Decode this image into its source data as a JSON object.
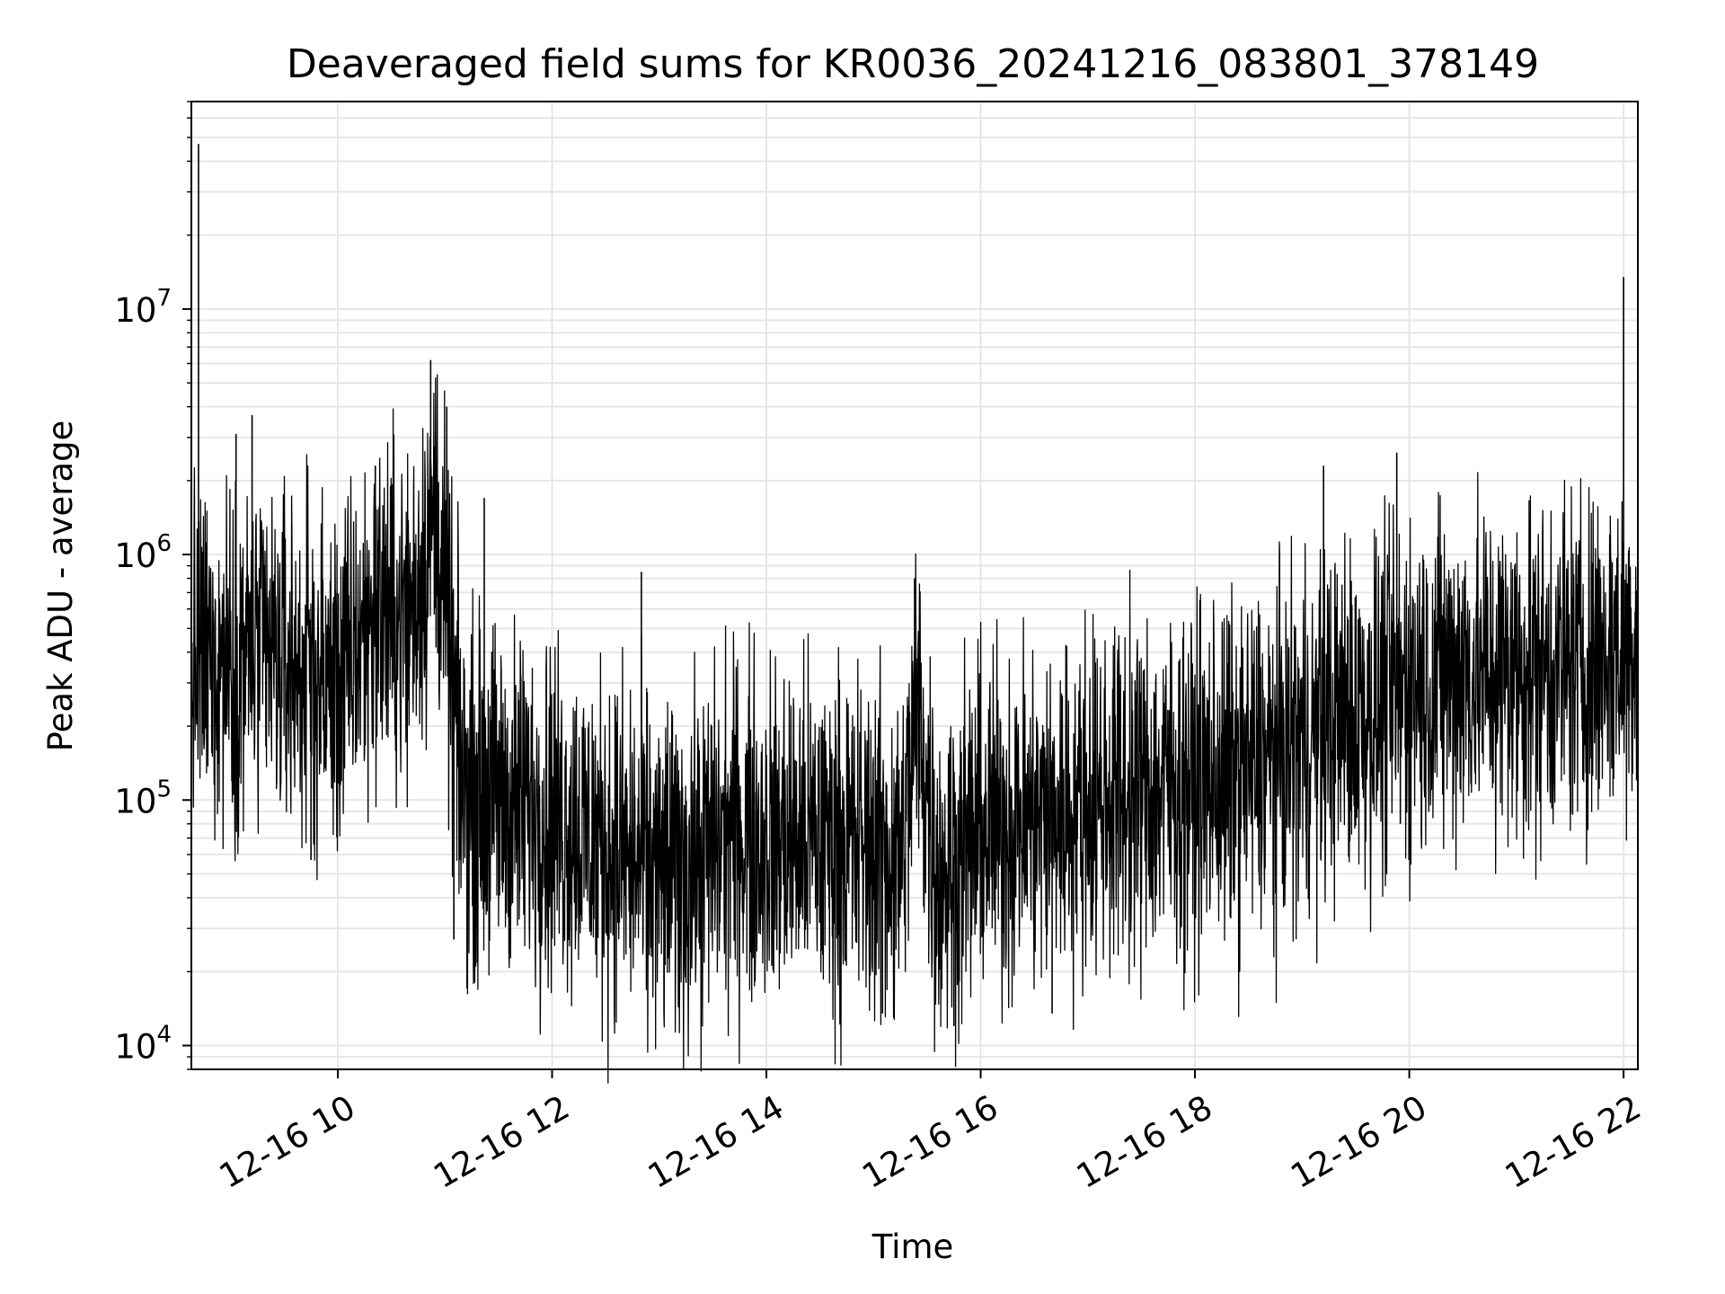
{
  "chart_data": {
    "type": "line",
    "title": "Deaveraged field sums for KR0036_20241216_083801_378149",
    "xlabel": "Time",
    "ylabel": "Peak ADU - average",
    "yscale": "log",
    "ylim": [
      8000,
      70000000
    ],
    "xlim": [
      "2024-12-16 08:38",
      "2024-12-16 22:08"
    ],
    "grid": true,
    "legend": "none",
    "line_color": "#000000",
    "grid_color": "#e6e6e6",
    "x_ticks": [
      {
        "at": "2024-12-16 10:00",
        "label": "12-16 10"
      },
      {
        "at": "2024-12-16 12:00",
        "label": "12-16 12"
      },
      {
        "at": "2024-12-16 14:00",
        "label": "12-16 14"
      },
      {
        "at": "2024-12-16 16:00",
        "label": "12-16 16"
      },
      {
        "at": "2024-12-16 18:00",
        "label": "12-16 18"
      },
      {
        "at": "2024-12-16 20:00",
        "label": "12-16 20"
      },
      {
        "at": "2024-12-16 22:00",
        "label": "12-16 22"
      }
    ],
    "y_ticks": [
      {
        "value": 10000,
        "base": "10",
        "exp": "4"
      },
      {
        "value": 100000,
        "base": "10",
        "exp": "5"
      },
      {
        "value": 1000000,
        "base": "10",
        "exp": "6"
      },
      {
        "value": 10000000,
        "base": "10",
        "exp": "7"
      }
    ],
    "series": [
      {
        "note_on_data": "noisy time series; baseline envelope sampled from the figure, spikes listed separately",
        "x": [
          "2024-12-16 08:38",
          "2024-12-16 09:00",
          "2024-12-16 09:20",
          "2024-12-16 09:40",
          "2024-12-16 10:00",
          "2024-12-16 10:20",
          "2024-12-16 10:40",
          "2024-12-16 10:55",
          "2024-12-16 11:10",
          "2024-12-16 11:30",
          "2024-12-16 12:00",
          "2024-12-16 12:30",
          "2024-12-16 13:00",
          "2024-12-16 13:20",
          "2024-12-16 13:40",
          "2024-12-16 14:00",
          "2024-12-16 14:30",
          "2024-12-16 15:00",
          "2024-12-16 15:15",
          "2024-12-16 15:25",
          "2024-12-16 15:35",
          "2024-12-16 15:50",
          "2024-12-16 16:10",
          "2024-12-16 16:40",
          "2024-12-16 17:00",
          "2024-12-16 17:30",
          "2024-12-16 18:00",
          "2024-12-16 18:30",
          "2024-12-16 19:00",
          "2024-12-16 19:20",
          "2024-12-16 19:40",
          "2024-12-16 20:00",
          "2024-12-16 20:30",
          "2024-12-16 21:00",
          "2024-12-16 21:30",
          "2024-12-16 22:00",
          "2024-12-16 22:08"
        ],
        "y": [
          350000,
          400000,
          380000,
          340000,
          280000,
          600000,
          550000,
          1500000,
          110000,
          100000,
          90000,
          65000,
          50000,
          55000,
          75000,
          70000,
          68000,
          65000,
          55000,
          250000,
          50000,
          65000,
          80000,
          85000,
          100000,
          110000,
          115000,
          130000,
          170000,
          220000,
          230000,
          300000,
          330000,
          340000,
          350000,
          400000,
          500000
        ],
        "spikes": [
          {
            "x": "2024-12-16 08:42",
            "y": 47000000
          },
          {
            "x": "2024-12-16 09:12",
            "y": 3700000
          },
          {
            "x": "2024-12-16 09:03",
            "y": 3100000
          },
          {
            "x": "2024-12-16 10:21",
            "y": 2300000
          },
          {
            "x": "2024-12-16 10:52",
            "y": 6200000
          },
          {
            "x": "2024-12-16 11:01",
            "y": 4000000
          },
          {
            "x": "2024-12-16 11:22",
            "y": 1700000
          },
          {
            "x": "2024-12-16 12:50",
            "y": 850000
          },
          {
            "x": "2024-12-16 15:23",
            "y": 800000
          },
          {
            "x": "2024-12-16 19:12",
            "y": 2300000
          },
          {
            "x": "2024-12-16 19:53",
            "y": 2600000
          },
          {
            "x": "2024-12-16 22:00",
            "y": 13500000
          }
        ],
        "dips": [
          {
            "x": "2024-12-16 09:45",
            "y": 57000
          },
          {
            "x": "2024-12-16 11:05",
            "y": 27000
          },
          {
            "x": "2024-12-16 13:15",
            "y": 18000
          },
          {
            "x": "2024-12-16 15:05",
            "y": 13500
          },
          {
            "x": "2024-12-16 15:45",
            "y": 12000
          },
          {
            "x": "2024-12-16 16:40",
            "y": 13500
          },
          {
            "x": "2024-12-16 18:20",
            "y": 33000
          },
          {
            "x": "2024-12-16 19:55",
            "y": 80000
          }
        ]
      }
    ]
  }
}
